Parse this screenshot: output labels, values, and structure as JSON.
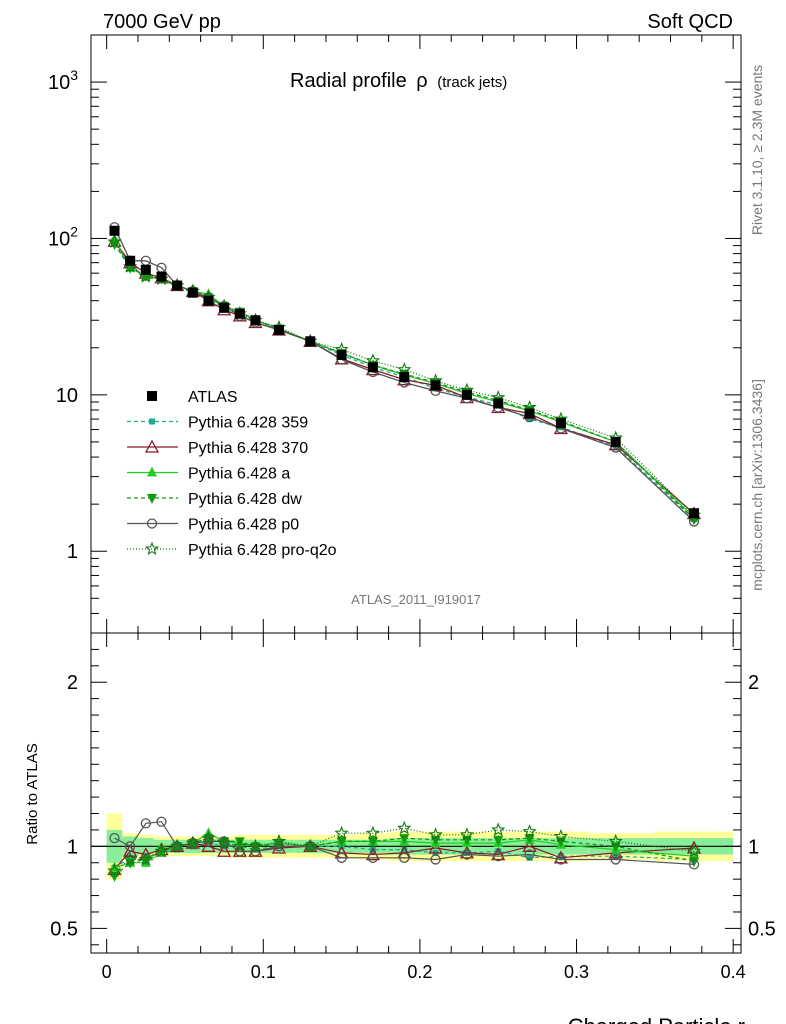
{
  "header": {
    "left": "7000 GeV pp",
    "right": "Soft QCD"
  },
  "side": {
    "rivet": "Rivet 3.1.10, ≥ 2.3M events",
    "mcplots": "mcplots.cern.ch [arXiv:1306.3436]"
  },
  "chart_data": [
    {
      "type": "line",
      "title": "Radial profile",
      "title_symbol": "ρ",
      "title_suffix": "(track jets)",
      "analysis": "ATLAS_2011_I919017",
      "xlabel": "Charged Particle r",
      "ylabel": "",
      "xlim": [
        -0.01,
        0.405
      ],
      "ylim": [
        0.3,
        2000
      ],
      "yscale": "log",
      "grid": false,
      "legend_position": "left",
      "x": [
        0.005,
        0.015,
        0.025,
        0.035,
        0.045,
        0.055,
        0.065,
        0.075,
        0.085,
        0.095,
        0.11,
        0.13,
        0.15,
        0.17,
        0.19,
        0.21,
        0.23,
        0.25,
        0.27,
        0.29,
        0.325,
        0.375
      ],
      "xticks": [
        "0",
        "0.1",
        "0.2",
        "0.3",
        "0.4"
      ],
      "yticks": [
        "1",
        "10",
        "10^2",
        "10^3"
      ],
      "series": [
        {
          "name": "ATLAS",
          "color": "#000000",
          "marker": "square-filled",
          "dash": "none",
          "values": [
            112,
            72,
            63,
            57,
            50,
            45,
            40,
            36,
            33,
            30,
            26,
            22,
            18,
            15,
            13,
            11.5,
            10,
            8.8,
            7.6,
            6.6,
            5.0,
            1.75
          ]
        },
        {
          "name": "Pythia 6.428 359",
          "color": "#1aae8c",
          "marker": "square-small",
          "dash": "4,3",
          "values": [
            97,
            67,
            58,
            55,
            49,
            45,
            41,
            36,
            33,
            29,
            26,
            22,
            18,
            15,
            13,
            11,
            9.7,
            8.6,
            7.0,
            6.2,
            4.7,
            1.6
          ]
        },
        {
          "name": "Pythia 6.428 370",
          "color": "#8b1a2b",
          "marker": "triangle-open",
          "dash": "none",
          "values": [
            96,
            70,
            60,
            56,
            50,
            46,
            40,
            35,
            32,
            29,
            26,
            22,
            17,
            14.5,
            12.5,
            11.5,
            9.6,
            8.3,
            7.6,
            6.1,
            4.8,
            1.74
          ]
        },
        {
          "name": "Pythia 6.428 a",
          "color": "#22cc22",
          "marker": "triangle-filled",
          "dash": "none",
          "values": [
            98,
            65,
            57,
            55,
            50,
            46,
            44,
            37,
            34,
            30,
            26.5,
            22,
            18.5,
            15.5,
            13.4,
            11.8,
            10.2,
            9.0,
            7.9,
            6.7,
            5.0,
            1.65
          ]
        },
        {
          "name": "Pythia 6.428 dw",
          "color": "#119911",
          "marker": "triangle-down-filled",
          "dash": "4,3",
          "values": [
            92,
            65,
            58,
            56,
            50,
            46,
            42,
            37,
            34,
            30,
            26.5,
            22,
            18.5,
            15.5,
            13.6,
            12,
            10.4,
            9.2,
            8.0,
            6.8,
            5.0,
            1.6
          ]
        },
        {
          "name": "Pythia 6.428 p0",
          "color": "#555555",
          "marker": "circle-open",
          "dash": "none",
          "values": [
            118,
            72,
            72,
            65,
            50,
            46,
            42,
            37,
            32,
            29,
            26,
            22,
            16.8,
            14,
            12,
            10.6,
            9.5,
            8.3,
            7.2,
            6.1,
            4.6,
            1.55
          ]
        },
        {
          "name": "Pythia 6.428 pro-q2o",
          "color": "#117711",
          "marker": "star-open",
          "dash": "1,2",
          "values": [
            95,
            66,
            57,
            55,
            50,
            46,
            42,
            37,
            33,
            30,
            27,
            22,
            19.5,
            16.5,
            14.5,
            12.3,
            10.7,
            9.6,
            8.3,
            7.0,
            5.3,
            1.7
          ]
        }
      ]
    },
    {
      "type": "line",
      "title": "",
      "xlabel": "Charged Particle r",
      "ylabel": "Ratio to ATLAS",
      "xlim": [
        -0.01,
        0.405
      ],
      "ylim": [
        0.35,
        2.3
      ],
      "grid": false,
      "yticks": [
        "0.5",
        "1",
        "2"
      ],
      "reference_line": 1,
      "x": [
        0.005,
        0.015,
        0.025,
        0.035,
        0.045,
        0.055,
        0.065,
        0.075,
        0.085,
        0.095,
        0.11,
        0.13,
        0.15,
        0.17,
        0.19,
        0.21,
        0.23,
        0.25,
        0.27,
        0.29,
        0.325,
        0.375
      ],
      "band_inner": [
        0.1,
        0.06,
        0.05,
        0.04,
        0.04,
        0.04,
        0.04,
        0.04,
        0.04,
        0.04,
        0.04,
        0.04,
        0.04,
        0.04,
        0.05,
        0.05,
        0.05,
        0.05,
        0.05,
        0.05,
        0.05,
        0.05
      ],
      "band_outer": [
        0.2,
        0.08,
        0.07,
        0.06,
        0.06,
        0.06,
        0.06,
        0.06,
        0.07,
        0.07,
        0.07,
        0.07,
        0.07,
        0.08,
        0.09,
        0.09,
        0.09,
        0.09,
        0.09,
        0.09,
        0.08,
        0.09
      ],
      "series": [
        {
          "name": "Pythia 6.428 359",
          "values": [
            0.87,
            0.93,
            0.93,
            0.96,
            0.98,
            1.0,
            1.02,
            1.0,
            1.0,
            0.98,
            1.0,
            1.0,
            1.0,
            0.98,
            0.98,
            0.96,
            0.96,
            0.97,
            0.93,
            0.94,
            0.94,
            0.92
          ]
        },
        {
          "name": "Pythia 6.428 370",
          "values": [
            0.86,
            0.97,
            0.95,
            0.98,
            1.0,
            1.02,
            1.0,
            0.97,
            0.97,
            0.97,
            0.99,
            1.0,
            0.96,
            0.95,
            0.96,
            0.99,
            0.96,
            0.95,
            1.0,
            0.93,
            0.96,
            0.99
          ]
        },
        {
          "name": "Pythia 6.428 a",
          "values": [
            0.87,
            0.9,
            0.9,
            0.96,
            1.0,
            1.02,
            1.08,
            1.03,
            1.02,
            1.0,
            1.02,
            1.0,
            1.03,
            1.03,
            1.03,
            1.02,
            1.02,
            1.02,
            1.04,
            1.01,
            0.98,
            0.94
          ]
        },
        {
          "name": "Pythia 6.428 dw",
          "values": [
            0.82,
            0.9,
            0.92,
            0.98,
            1.0,
            1.02,
            1.05,
            1.03,
            1.03,
            1.0,
            1.02,
            1.0,
            1.03,
            1.03,
            1.05,
            1.04,
            1.04,
            1.04,
            1.05,
            1.03,
            1.0,
            0.91
          ]
        },
        {
          "name": "Pythia 6.428 p0",
          "values": [
            1.05,
            1.0,
            1.14,
            1.15,
            1.0,
            1.02,
            1.03,
            1.03,
            0.97,
            0.97,
            1.0,
            1.0,
            0.93,
            0.93,
            0.93,
            0.92,
            0.95,
            0.94,
            0.95,
            0.92,
            0.92,
            0.89
          ]
        },
        {
          "name": "Pythia 6.428 pro-q2o",
          "values": [
            0.85,
            0.92,
            0.92,
            0.97,
            1.0,
            1.02,
            1.05,
            1.02,
            1.0,
            1.0,
            1.03,
            1.0,
            1.08,
            1.08,
            1.11,
            1.07,
            1.07,
            1.1,
            1.09,
            1.06,
            1.03,
            0.97
          ]
        }
      ]
    }
  ]
}
